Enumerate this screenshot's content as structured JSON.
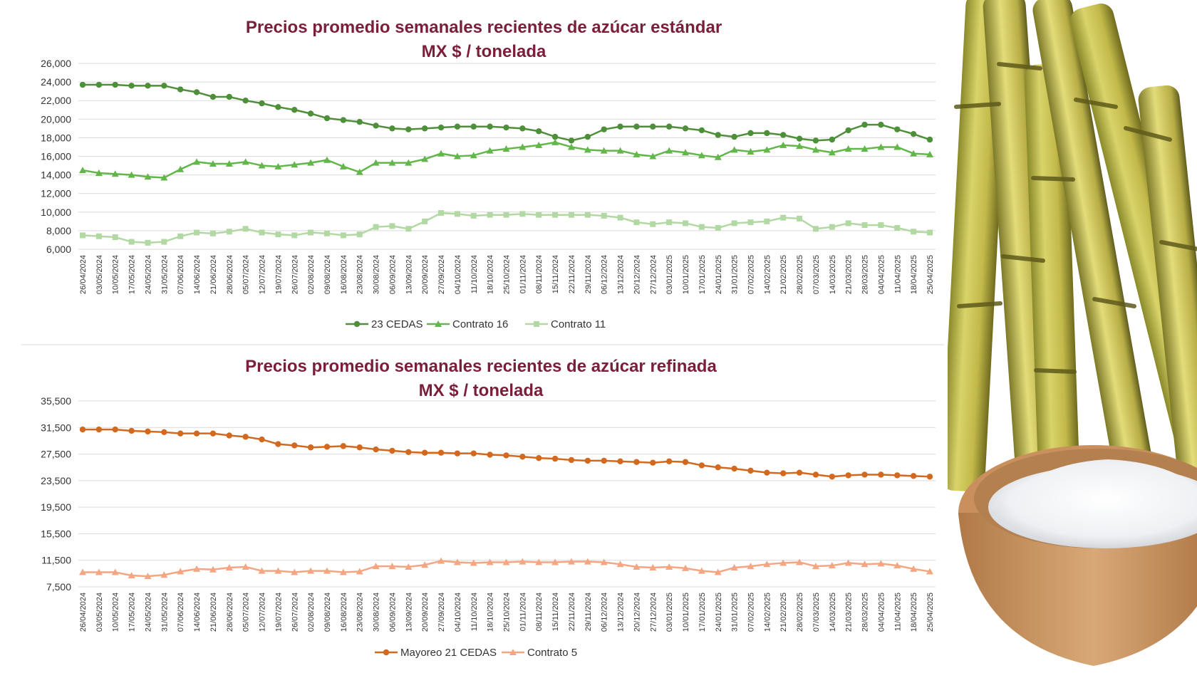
{
  "chart_data": [
    {
      "type": "line",
      "title": "Precios promedio semanales recientes de azúcar estándar",
      "subtitle": "MX $ / tonelada",
      "xlabel": "",
      "ylabel": "",
      "ylim": [
        6000,
        26000
      ],
      "yticks": [
        "26,000",
        "24,000",
        "22,000",
        "20,000",
        "18,000",
        "16,000",
        "14,000",
        "12,000",
        "10,000",
        "8,000",
        "6,000"
      ],
      "ytick_values": [
        26000,
        24000,
        22000,
        20000,
        18000,
        16000,
        14000,
        12000,
        10000,
        8000,
        6000
      ],
      "grid": true,
      "legend_placement": "bottom",
      "categories": [
        "26/04/2024",
        "03/05/2024",
        "10/05/2024",
        "17/05/2024",
        "24/05/2024",
        "31/05/2024",
        "07/06/2024",
        "14/06/2024",
        "21/06/2024",
        "28/06/2024",
        "05/07/2024",
        "12/07/2024",
        "19/07/2024",
        "26/07/2024",
        "02/08/2024",
        "09/08/2024",
        "16/08/2024",
        "23/08/2024",
        "30/08/2024",
        "06/09/2024",
        "13/09/2024",
        "20/09/2024",
        "27/09/2024",
        "04/10/2024",
        "11/10/2024",
        "18/10/2024",
        "25/10/2024",
        "01/11/2024",
        "08/11/2024",
        "15/11/2024",
        "22/11/2024",
        "29/11/2024",
        "06/12/2024",
        "13/12/2024",
        "20/12/2024",
        "27/12/2024",
        "03/01/2025",
        "10/01/2025",
        "17/01/2025",
        "24/01/2025",
        "31/01/2025",
        "07/02/2025",
        "14/02/2025",
        "21/02/2025",
        "28/02/2025",
        "07/03/2025",
        "14/03/2025",
        "21/03/2025",
        "28/03/2025",
        "04/04/2025",
        "11/04/2025",
        "18/04/2025",
        "25/04/2025"
      ],
      "series": [
        {
          "name": "23 CEDAS",
          "color": "#4e8f3a",
          "marker": "circle",
          "values": [
            23700,
            23700,
            23700,
            23600,
            23600,
            23600,
            23200,
            22900,
            22400,
            22400,
            22000,
            21700,
            21300,
            21000,
            20600,
            20100,
            19900,
            19700,
            19300,
            19000,
            18900,
            19000,
            19100,
            19200,
            19200,
            19200,
            19100,
            19000,
            18700,
            18100,
            17700,
            18100,
            18900,
            19200,
            19200,
            19200,
            19200,
            19000,
            18800,
            18300,
            18100,
            18500,
            18500,
            18300,
            17900,
            17700,
            17800,
            18800,
            19400,
            19400,
            18900,
            18400,
            17800
          ]
        },
        {
          "name": "Contrato 16",
          "color": "#62b64a",
          "marker": "triangle",
          "values": [
            14500,
            14200,
            14100,
            14000,
            13800,
            13700,
            14600,
            15400,
            15200,
            15200,
            15400,
            15000,
            14900,
            15100,
            15300,
            15600,
            14900,
            14300,
            15300,
            15300,
            15300,
            15700,
            16300,
            16000,
            16100,
            16600,
            16800,
            17000,
            17200,
            17500,
            17000,
            16700,
            16600,
            16600,
            16200,
            16000,
            16600,
            16400,
            16100,
            15900,
            16700,
            16500,
            16700,
            17200,
            17100,
            16700,
            16400,
            16800,
            16800,
            17000,
            17000,
            16300,
            16200
          ]
        },
        {
          "name": "Contrato 11",
          "color": "#b2d8a3",
          "marker": "square",
          "values": [
            7500,
            7400,
            7300,
            6800,
            6700,
            6800,
            7400,
            7800,
            7700,
            7900,
            8200,
            7800,
            7600,
            7500,
            7800,
            7700,
            7500,
            7600,
            8400,
            8500,
            8200,
            9000,
            9900,
            9800,
            9600,
            9700,
            9700,
            9800,
            9700,
            9700,
            9700,
            9700,
            9600,
            9400,
            8900,
            8700,
            8900,
            8800,
            8400,
            8300,
            8800,
            8900,
            9000,
            9400,
            9300,
            8200,
            8400,
            8800,
            8600,
            8600,
            8300,
            7900,
            7800
          ]
        }
      ]
    },
    {
      "type": "line",
      "title": "Precios promedio semanales recientes de azúcar refinada",
      "subtitle": "MX $ / tonelada",
      "xlabel": "",
      "ylabel": "",
      "ylim": [
        7500,
        35500
      ],
      "yticks": [
        "35,500",
        "31,500",
        "27,500",
        "23,500",
        "19,500",
        "15,500",
        "11,500",
        "7,500"
      ],
      "ytick_values": [
        35500,
        31500,
        27500,
        23500,
        19500,
        15500,
        11500,
        7500
      ],
      "grid": true,
      "legend_placement": "bottom",
      "categories": [
        "26/04/2024",
        "03/05/2024",
        "10/05/2024",
        "17/05/2024",
        "24/05/2024",
        "31/05/2024",
        "07/06/2024",
        "14/06/2024",
        "21/06/2024",
        "28/06/2024",
        "05/07/2024",
        "12/07/2024",
        "19/07/2024",
        "26/07/2024",
        "02/08/2024",
        "09/08/2024",
        "16/08/2024",
        "23/08/2024",
        "30/08/2024",
        "06/09/2024",
        "13/09/2024",
        "20/09/2024",
        "27/09/2024",
        "04/10/2024",
        "11/10/2024",
        "18/10/2024",
        "25/10/2024",
        "01/11/2024",
        "08/11/2024",
        "15/11/2024",
        "22/11/2024",
        "29/11/2024",
        "06/12/2024",
        "13/12/2024",
        "20/12/2024",
        "27/12/2024",
        "03/01/2025",
        "10/01/2025",
        "17/01/2025",
        "24/01/2025",
        "31/01/2025",
        "07/02/2025",
        "14/02/2025",
        "21/02/2025",
        "28/02/2025",
        "07/03/2025",
        "14/03/2025",
        "21/03/2025",
        "28/03/2025",
        "04/04/2025",
        "11/04/2025",
        "18/04/2025",
        "25/04/2025"
      ],
      "series": [
        {
          "name": "Mayoreo 21 CEDAS",
          "color": "#d2691e",
          "marker": "circle",
          "values": [
            31200,
            31200,
            31200,
            31000,
            30900,
            30800,
            30600,
            30600,
            30600,
            30300,
            30100,
            29700,
            29000,
            28800,
            28500,
            28600,
            28700,
            28500,
            28200,
            28000,
            27800,
            27700,
            27700,
            27600,
            27600,
            27400,
            27300,
            27100,
            26900,
            26800,
            26600,
            26500,
            26500,
            26400,
            26300,
            26200,
            26400,
            26300,
            25800,
            25500,
            25300,
            25000,
            24700,
            24600,
            24700,
            24400,
            24100,
            24300,
            24400,
            24400,
            24300,
            24200,
            24100
          ]
        },
        {
          "name": "Contrato 5",
          "color": "#f4a582",
          "marker": "triangle",
          "values": [
            9700,
            9700,
            9700,
            9200,
            9100,
            9300,
            9800,
            10200,
            10100,
            10400,
            10500,
            9900,
            9900,
            9700,
            9900,
            9900,
            9700,
            9800,
            10600,
            10600,
            10500,
            10800,
            11400,
            11200,
            11100,
            11200,
            11200,
            11300,
            11200,
            11200,
            11300,
            11300,
            11200,
            10900,
            10500,
            10400,
            10500,
            10300,
            9900,
            9700,
            10400,
            10600,
            10900,
            11100,
            11200,
            10600,
            10700,
            11100,
            10900,
            11000,
            10700,
            10200,
            9800
          ]
        }
      ]
    }
  ],
  "colors": {
    "title": "#7b1e3a",
    "grid": "#d9d9d9",
    "axis_text": "#333333"
  },
  "illustration": "sugarcane-and-sugar-bowl"
}
